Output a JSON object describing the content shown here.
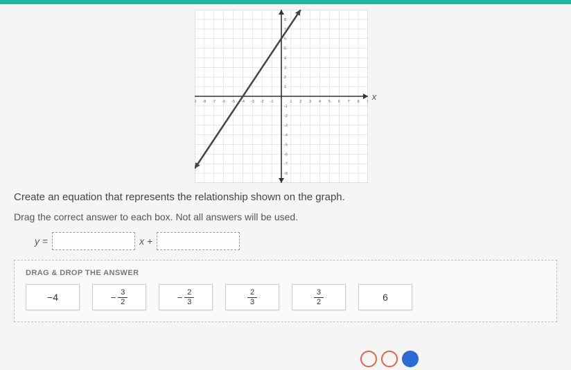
{
  "graph": {
    "type": "line",
    "xlim": [
      -9,
      9
    ],
    "ylim": [
      -9,
      9
    ],
    "tick_step": 1,
    "background_color": "#ffffff",
    "grid_color": "#d9d9d9",
    "axis_color": "#333333",
    "line_color": "#444444",
    "line_width": 2.5,
    "arrow_ends": true,
    "x_axis_label": "x",
    "points": [
      {
        "x": -9,
        "y": -7.5
      },
      {
        "x": 3,
        "y": 10.5
      }
    ],
    "x_tick_labels": [
      "-9",
      "-8",
      "-7",
      "-6",
      "-5",
      "-4",
      "-3",
      "-2",
      "-1",
      "1",
      "2",
      "3",
      "4",
      "5",
      "6",
      "7",
      "8",
      "9"
    ],
    "y_tick_labels": [
      "1",
      "2",
      "3",
      "4",
      "5",
      "6",
      "7",
      "8",
      "-1",
      "-2",
      "-3",
      "-4",
      "-5",
      "-6",
      "-7",
      "-8"
    ]
  },
  "instruction": "Create an equation that represents the relationship shown on the graph.",
  "sub_instruction": "Drag the correct answer to each box. Not all answers will be used.",
  "equation": {
    "lhs": "y =",
    "mid": "x +"
  },
  "panel_title": "DRAG & DROP THE ANSWER",
  "tiles": [
    {
      "kind": "int",
      "value": "−4"
    },
    {
      "kind": "frac",
      "sign": "−",
      "num": "3",
      "den": "2"
    },
    {
      "kind": "frac",
      "sign": "−",
      "num": "2",
      "den": "3"
    },
    {
      "kind": "frac",
      "sign": "",
      "num": "2",
      "den": "3"
    },
    {
      "kind": "frac",
      "sign": "",
      "num": "3",
      "den": "2"
    },
    {
      "kind": "int",
      "value": "6"
    }
  ]
}
